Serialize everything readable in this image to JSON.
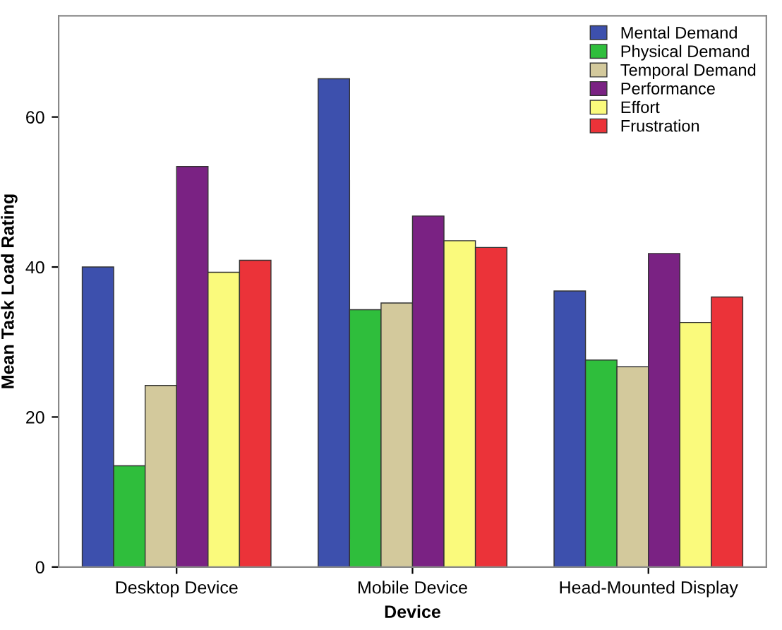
{
  "chart_data": {
    "type": "bar",
    "xlabel": "Device",
    "ylabel": "Mean Task Load Rating",
    "categories": [
      "Desktop Device",
      "Mobile Device",
      "Head-Mounted Display"
    ],
    "series": [
      {
        "name": "Mental Demand",
        "color": "#3d50ad",
        "values": [
          40.0,
          65.1,
          36.8
        ]
      },
      {
        "name": "Physical Demand",
        "color": "#2fbe3c",
        "values": [
          13.5,
          34.3,
          27.6
        ]
      },
      {
        "name": "Temporal Demand",
        "color": "#d3c99c",
        "values": [
          24.2,
          35.2,
          26.7
        ]
      },
      {
        "name": "Performance",
        "color": "#7a2283",
        "values": [
          53.4,
          46.8,
          41.8
        ]
      },
      {
        "name": "Effort",
        "color": "#fafa7c",
        "values": [
          39.3,
          43.5,
          32.6
        ]
      },
      {
        "name": "Frustration",
        "color": "#eb3339",
        "values": [
          40.9,
          42.6,
          36.0
        ]
      }
    ],
    "ylim": [
      0,
      73.5
    ],
    "yticks": [
      0,
      20,
      40,
      60
    ],
    "grid": false,
    "legend": "top right"
  }
}
